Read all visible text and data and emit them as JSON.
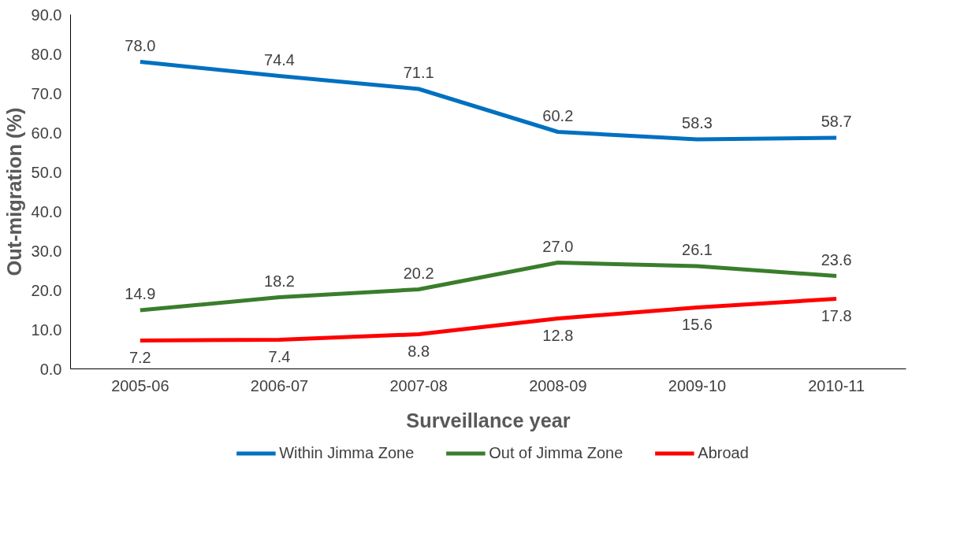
{
  "chart_data": {
    "type": "line",
    "xlabel": "Surveillance year",
    "ylabel": "Out-migration (%)",
    "categories": [
      "2005-06",
      "2006-07",
      "2007-08",
      "2008-09",
      "2009-10",
      "2010-11"
    ],
    "series": [
      {
        "name": "Within Jimma Zone",
        "color": "#0070c0",
        "values": [
          78.0,
          74.4,
          71.1,
          60.2,
          58.3,
          58.7
        ],
        "value_labels": [
          "78.0",
          "74.4",
          "71.1",
          "60.2",
          "58.3",
          "58.7"
        ]
      },
      {
        "name": "Out of Jimma Zone",
        "color": "#3a7d2c",
        "values": [
          14.9,
          18.2,
          20.2,
          27.0,
          26.1,
          23.6
        ],
        "value_labels": [
          "14.9",
          "18.2",
          "20.2",
          "27.0",
          "26.1",
          "23.6"
        ]
      },
      {
        "name": "Abroad",
        "color": "#ff0000",
        "values": [
          7.2,
          7.4,
          8.8,
          12.8,
          15.6,
          17.8
        ],
        "value_labels": [
          "7.2",
          "7.4",
          "8.8",
          "12.8",
          "15.6",
          "17.8"
        ]
      }
    ],
    "ylim": [
      0,
      90
    ],
    "yticks": [
      {
        "value": 0,
        "label": "0.0"
      },
      {
        "value": 10,
        "label": "10.0"
      },
      {
        "value": 20,
        "label": "20.0"
      },
      {
        "value": 30,
        "label": "30.0"
      },
      {
        "value": 40,
        "label": "40.0"
      },
      {
        "value": 50,
        "label": "50.0"
      },
      {
        "value": 60,
        "label": "60.0"
      },
      {
        "value": 70,
        "label": "70.0"
      },
      {
        "value": 80,
        "label": "80.0"
      },
      {
        "value": 90,
        "label": "90.0"
      }
    ],
    "legend": "bottom",
    "grid": false,
    "marker": "none",
    "line_style": "solid"
  }
}
